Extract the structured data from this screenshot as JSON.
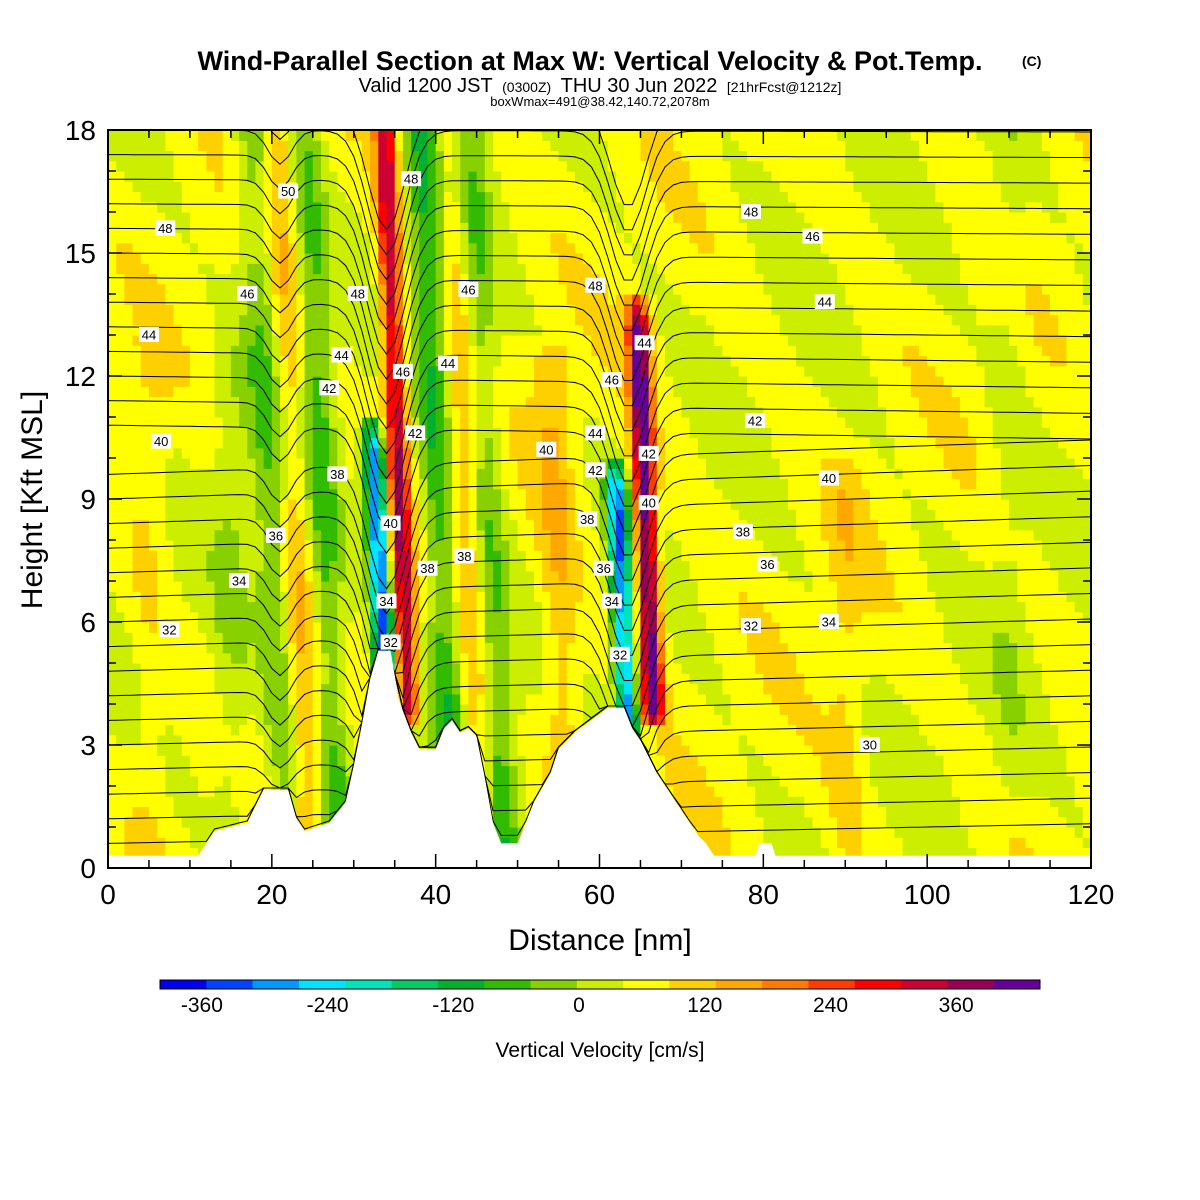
{
  "title": {
    "main": "Wind-Parallel Section at Max W: Vertical Velocity & Pot.Temp.",
    "copyright": "(C)",
    "valid_prefix": "Valid 1200 JST",
    "valid_utc": "(0300Z)",
    "valid_date": "THU 30 Jun 2022",
    "forecast": "[21hrFcst@1212z]",
    "box_info": "boxWmax=491@38.42,140.72,2078m"
  },
  "chart_data": {
    "type": "heatmap",
    "xlabel": "Distance [nm]",
    "ylabel": "Height [Kft MSL]",
    "xlim": [
      0,
      120
    ],
    "ylim": [
      0,
      18
    ],
    "x_ticks": [
      0,
      20,
      40,
      60,
      80,
      100,
      120
    ],
    "y_ticks": [
      0,
      3,
      6,
      9,
      12,
      15,
      18
    ],
    "colorbar": {
      "title": "Vertical Velocity [cm/s]",
      "tick_values": [
        -360,
        -240,
        -120,
        0,
        120,
        240,
        360
      ],
      "min": -400,
      "max": 440,
      "step": 40,
      "colors": [
        "#0000ee",
        "#0044ff",
        "#0099ff",
        "#00e5ff",
        "#00e5b8",
        "#00cc66",
        "#00b030",
        "#33bb00",
        "#88d000",
        "#ccee00",
        "#ffff00",
        "#ffd000",
        "#ffa800",
        "#ff7a00",
        "#ff3c00",
        "#ff0000",
        "#cc0033",
        "#990055",
        "#660099"
      ]
    },
    "velocity_anomalies": [
      {
        "x": 36.5,
        "y0": 4.0,
        "y1": 18.0,
        "value": 270
      },
      {
        "x": 66.5,
        "y0": 4.0,
        "y1": 13.0,
        "value": 350
      },
      {
        "x": 34.0,
        "y0": 4.0,
        "y1": 10.0,
        "value": -340
      },
      {
        "x": 63.5,
        "y0": 3.5,
        "y1": 9.0,
        "value": -310
      },
      {
        "x": 42.0,
        "y0": 3.0,
        "y1": 18.0,
        "value": -130
      },
      {
        "x": 48.0,
        "y0": 0.5,
        "y1": 18.0,
        "value": -120
      },
      {
        "x": 28.0,
        "y0": 0.5,
        "y1": 18.0,
        "value": -110
      },
      {
        "x": 22.0,
        "y0": 0.5,
        "y1": 18.0,
        "value": -90
      },
      {
        "x": 45.5,
        "y0": 1.0,
        "y1": 18.0,
        "value": 110
      },
      {
        "x": 24.5,
        "y0": 1.0,
        "y1": 18.0,
        "value": 90
      },
      {
        "x": 56.0,
        "y0": 2.0,
        "y1": 12.0,
        "value": 70
      },
      {
        "x": 15.0,
        "y0": 0.5,
        "y1": 12.0,
        "value": -40
      },
      {
        "x": 90.0,
        "y0": 0.5,
        "y1": 9.0,
        "value": 40
      },
      {
        "x": 110.0,
        "y0": 2.0,
        "y1": 18.0,
        "value": -25
      },
      {
        "x": 5.0,
        "y0": 0.0,
        "y1": 12.0,
        "value": 30
      }
    ],
    "terrain": [
      {
        "x": 0,
        "h": 0.3
      },
      {
        "x": 11,
        "h": 0.3
      },
      {
        "x": 12,
        "h": 0.6
      },
      {
        "x": 13,
        "h": 0.9
      },
      {
        "x": 17,
        "h": 1.1
      },
      {
        "x": 19,
        "h": 1.9
      },
      {
        "x": 22,
        "h": 1.9
      },
      {
        "x": 23,
        "h": 1.2
      },
      {
        "x": 24,
        "h": 0.9
      },
      {
        "x": 27,
        "h": 1.1
      },
      {
        "x": 29,
        "h": 1.6
      },
      {
        "x": 30,
        "h": 2.5
      },
      {
        "x": 31,
        "h": 3.5
      },
      {
        "x": 32,
        "h": 4.6
      },
      {
        "x": 33,
        "h": 5.3
      },
      {
        "x": 34.5,
        "h": 5.3
      },
      {
        "x": 35.5,
        "h": 4.1
      },
      {
        "x": 37,
        "h": 3.3
      },
      {
        "x": 38,
        "h": 2.9
      },
      {
        "x": 40,
        "h": 2.9
      },
      {
        "x": 41,
        "h": 3.4
      },
      {
        "x": 42,
        "h": 3.6
      },
      {
        "x": 43,
        "h": 3.3
      },
      {
        "x": 44,
        "h": 3.4
      },
      {
        "x": 45,
        "h": 3.2
      },
      {
        "x": 46,
        "h": 2.2
      },
      {
        "x": 47,
        "h": 1.1
      },
      {
        "x": 48,
        "h": 0.6
      },
      {
        "x": 50,
        "h": 0.6
      },
      {
        "x": 51,
        "h": 1.1
      },
      {
        "x": 52,
        "h": 1.6
      },
      {
        "x": 54,
        "h": 2.3
      },
      {
        "x": 55,
        "h": 2.9
      },
      {
        "x": 57,
        "h": 3.3
      },
      {
        "x": 59,
        "h": 3.6
      },
      {
        "x": 61,
        "h": 3.9
      },
      {
        "x": 63,
        "h": 3.9
      },
      {
        "x": 64,
        "h": 3.4
      },
      {
        "x": 65,
        "h": 3.1
      },
      {
        "x": 66,
        "h": 2.7
      },
      {
        "x": 67,
        "h": 2.3
      },
      {
        "x": 68,
        "h": 2.0
      },
      {
        "x": 69,
        "h": 1.7
      },
      {
        "x": 70,
        "h": 1.4
      },
      {
        "x": 71,
        "h": 1.1
      },
      {
        "x": 72,
        "h": 0.8
      },
      {
        "x": 73,
        "h": 0.6
      },
      {
        "x": 74,
        "h": 0.3
      },
      {
        "x": 79,
        "h": 0.3
      },
      {
        "x": 79.5,
        "h": 0.6
      },
      {
        "x": 81,
        "h": 0.6
      },
      {
        "x": 81.5,
        "h": 0.3
      },
      {
        "x": 120,
        "h": 0.3
      }
    ],
    "theta_contour_labels": [
      {
        "text": "50",
        "x": 22,
        "y": 16.5
      },
      {
        "text": "48",
        "x": 7,
        "y": 15.6
      },
      {
        "text": "46",
        "x": 17,
        "y": 14.0
      },
      {
        "text": "44",
        "x": 5,
        "y": 13.0
      },
      {
        "text": "48",
        "x": 30.5,
        "y": 14.0
      },
      {
        "text": "44",
        "x": 28.5,
        "y": 12.5
      },
      {
        "text": "42",
        "x": 27,
        "y": 11.7
      },
      {
        "text": "40",
        "x": 6.5,
        "y": 10.4
      },
      {
        "text": "38",
        "x": 28,
        "y": 9.6
      },
      {
        "text": "36",
        "x": 20.5,
        "y": 8.1
      },
      {
        "text": "34",
        "x": 16,
        "y": 7.0
      },
      {
        "text": "32",
        "x": 7.5,
        "y": 5.8
      },
      {
        "text": "48",
        "x": 37,
        "y": 16.8
      },
      {
        "text": "46",
        "x": 44,
        "y": 14.1
      },
      {
        "text": "46",
        "x": 36,
        "y": 12.1
      },
      {
        "text": "44",
        "x": 41.5,
        "y": 12.3
      },
      {
        "text": "42",
        "x": 37.5,
        "y": 10.6
      },
      {
        "text": "40",
        "x": 34.5,
        "y": 8.4
      },
      {
        "text": "38",
        "x": 39,
        "y": 7.3
      },
      {
        "text": "38",
        "x": 43.5,
        "y": 7.6
      },
      {
        "text": "34",
        "x": 34,
        "y": 6.5
      },
      {
        "text": "32",
        "x": 34.5,
        "y": 5.5
      },
      {
        "text": "48",
        "x": 59.5,
        "y": 14.2
      },
      {
        "text": "46",
        "x": 61.5,
        "y": 11.9
      },
      {
        "text": "44",
        "x": 65.5,
        "y": 12.8
      },
      {
        "text": "44",
        "x": 59.5,
        "y": 10.6
      },
      {
        "text": "40",
        "x": 53.5,
        "y": 10.2
      },
      {
        "text": "42",
        "x": 59.5,
        "y": 9.7
      },
      {
        "text": "42",
        "x": 66,
        "y": 10.1
      },
      {
        "text": "38",
        "x": 58.5,
        "y": 8.5
      },
      {
        "text": "40",
        "x": 66,
        "y": 8.9
      },
      {
        "text": "36",
        "x": 60.5,
        "y": 7.3
      },
      {
        "text": "34",
        "x": 61.5,
        "y": 6.5
      },
      {
        "text": "32",
        "x": 62.5,
        "y": 5.2
      },
      {
        "text": "48",
        "x": 78.5,
        "y": 16.0
      },
      {
        "text": "46",
        "x": 86,
        "y": 15.4
      },
      {
        "text": "44",
        "x": 87.5,
        "y": 13.8
      },
      {
        "text": "42",
        "x": 79,
        "y": 10.9
      },
      {
        "text": "40",
        "x": 88,
        "y": 9.5
      },
      {
        "text": "38",
        "x": 77.5,
        "y": 8.2
      },
      {
        "text": "36",
        "x": 80.5,
        "y": 7.4
      },
      {
        "text": "32",
        "x": 78.5,
        "y": 5.9
      },
      {
        "text": "34",
        "x": 88,
        "y": 6.0
      },
      {
        "text": "30",
        "x": 93,
        "y": 3.0
      }
    ]
  }
}
